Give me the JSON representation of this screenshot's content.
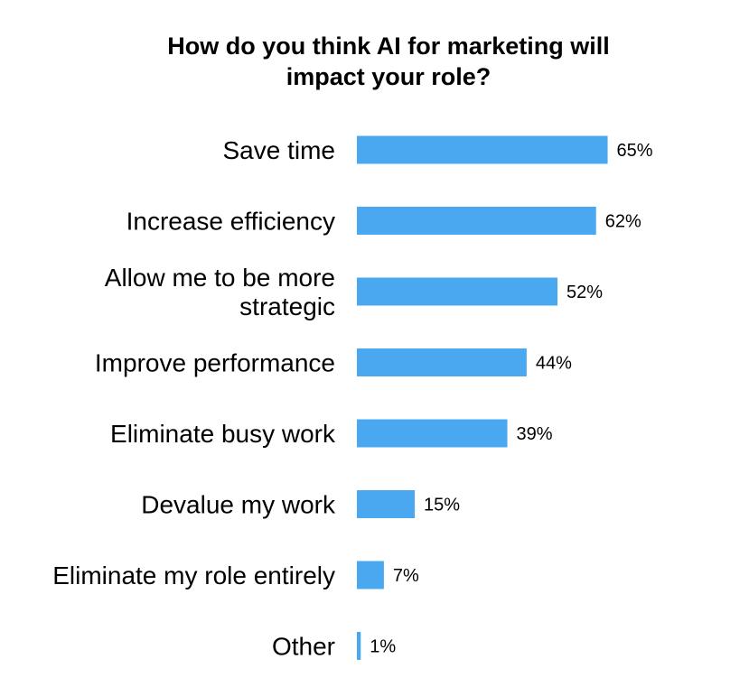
{
  "chart_data": {
    "type": "bar",
    "orientation": "horizontal",
    "title": "How do you think AI for marketing will impact your role?",
    "title_lines": [
      "How do you think AI for marketing will",
      "impact your role?"
    ],
    "categories": [
      "Save time",
      "Increase efficiency",
      "Allow me to be more strategic",
      "Improve performance",
      "Eliminate busy work",
      "Devalue my work",
      "Eliminate my role entirely",
      "Other"
    ],
    "category_lines": [
      [
        "Save time"
      ],
      [
        "Increase efficiency"
      ],
      [
        "Allow me to be more",
        "strategic"
      ],
      [
        "Improve performance"
      ],
      [
        "Eliminate busy work"
      ],
      [
        "Devalue my work"
      ],
      [
        "Eliminate my role entirely"
      ],
      [
        "Other"
      ]
    ],
    "values": [
      65,
      62,
      52,
      44,
      39,
      15,
      7,
      1
    ],
    "value_labels": [
      "65%",
      "62%",
      "52%",
      "44%",
      "39%",
      "15%",
      "7%",
      "1%"
    ],
    "unit": "%",
    "xlabel": "",
    "ylabel": "",
    "xlim": [
      0,
      100
    ],
    "grid": false,
    "legend": "none",
    "bar_color": "#4aa8f0"
  }
}
